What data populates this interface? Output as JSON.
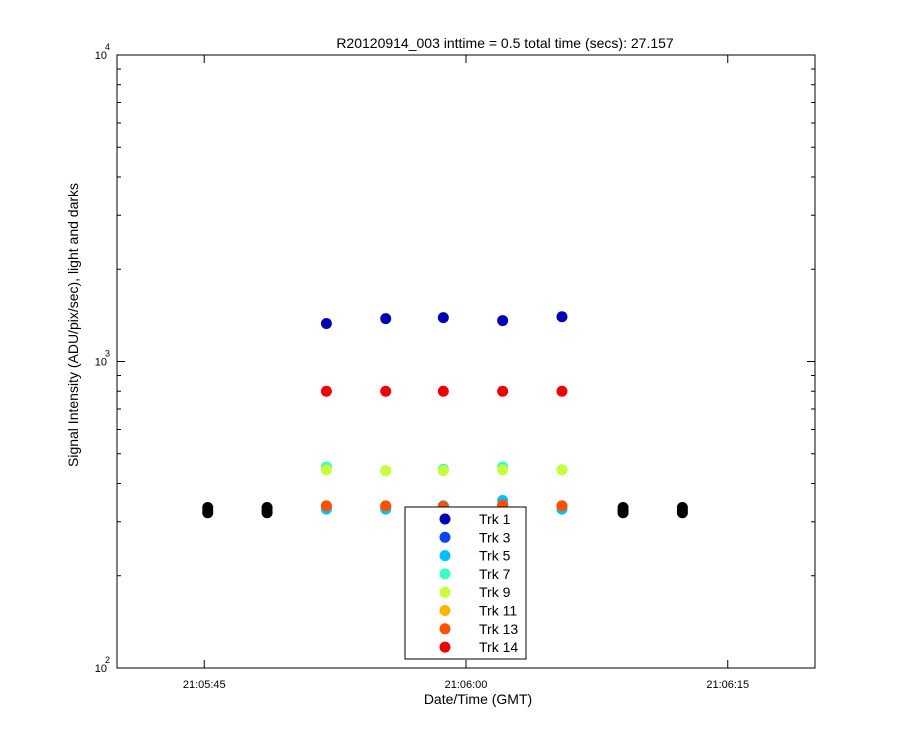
{
  "chart_data": {
    "type": "scatter",
    "title": "R20120914_003 inttime = 0.5 total time (secs): 27.157",
    "xlabel": "Date/Time (GMT)",
    "ylabel": "Signal Intensity (ADU/pix/sec), light and darks",
    "yscale": "log",
    "ylim": [
      100,
      10000
    ],
    "xlim": [
      "21:05:40",
      "21:06:20"
    ],
    "x_ticks": [
      "21:05:45",
      "21:06:00",
      "21:06:15"
    ],
    "y_ticks": [
      {
        "base": "10",
        "exp": "2"
      },
      {
        "base": "10",
        "exp": "3"
      },
      {
        "base": "10",
        "exp": "4"
      }
    ],
    "legend_position": "bottom-center",
    "grid": false,
    "series": [
      {
        "name": "Trk 1",
        "color": "#0000b4",
        "x": [
          "21:05:52.0",
          "21:05:55.4",
          "21:05:58.7",
          "21:06:02.1",
          "21:06:05.5"
        ],
        "y": [
          1330,
          1380,
          1390,
          1360,
          1400
        ]
      },
      {
        "name": "Trk 3",
        "color": "#0a46f0",
        "x": [
          "21:05:52.0",
          "21:05:55.4",
          "21:05:58.7",
          "21:06:02.1",
          "21:06:05.5"
        ],
        "y": [
          333,
          333,
          338,
          338,
          338
        ]
      },
      {
        "name": "Trk 5",
        "color": "#00beff",
        "x": [
          "21:05:52.0",
          "21:05:55.4",
          "21:05:58.7",
          "21:06:02.1",
          "21:06:05.5"
        ],
        "y": [
          330,
          330,
          338,
          352,
          330
        ]
      },
      {
        "name": "Trk 7",
        "color": "#3cffc8",
        "x": [
          "21:05:52.0",
          "21:05:55.4",
          "21:05:58.7",
          "21:06:02.1",
          "21:06:05.5"
        ],
        "y": [
          453,
          440,
          445,
          453,
          443
        ]
      },
      {
        "name": "Trk 9",
        "color": "#c8ff3c",
        "x": [
          "21:05:52.0",
          "21:05:55.4",
          "21:05:58.7",
          "21:06:02.1",
          "21:06:05.5"
        ],
        "y": [
          443,
          440,
          440,
          443,
          443
        ]
      },
      {
        "name": "Trk 11",
        "color": "#ffb400",
        "x": [
          "21:05:52.0",
          "21:05:55.4",
          "21:05:58.7",
          "21:06:02.1",
          "21:06:05.5"
        ],
        "y": [
          338,
          338,
          336,
          340,
          338
        ]
      },
      {
        "name": "Trk 13",
        "color": "#ff5000",
        "x": [
          "21:05:52.0",
          "21:05:55.4",
          "21:05:58.7",
          "21:06:02.1",
          "21:06:05.5"
        ],
        "y": [
          338,
          338,
          336,
          340,
          338
        ]
      },
      {
        "name": "Trk 14",
        "color": "#f00000",
        "x": [
          "21:05:52.0",
          "21:05:55.4",
          "21:05:58.7",
          "21:06:02.1",
          "21:06:05.5"
        ],
        "y": [
          800,
          800,
          800,
          800,
          800
        ]
      },
      {
        "color": "#000000",
        "x": [
          "21:05:45.2",
          "21:05:45.2",
          "21:05:45.2",
          "21:05:48.6",
          "21:05:48.6",
          "21:05:48.6",
          "21:06:09.0",
          "21:06:09.0",
          "21:06:09.0",
          "21:06:12.4",
          "21:06:12.4",
          "21:06:12.4"
        ],
        "y": [
          321,
          327,
          334,
          321,
          327,
          334,
          321,
          327,
          334,
          321,
          327,
          334
        ]
      }
    ]
  }
}
